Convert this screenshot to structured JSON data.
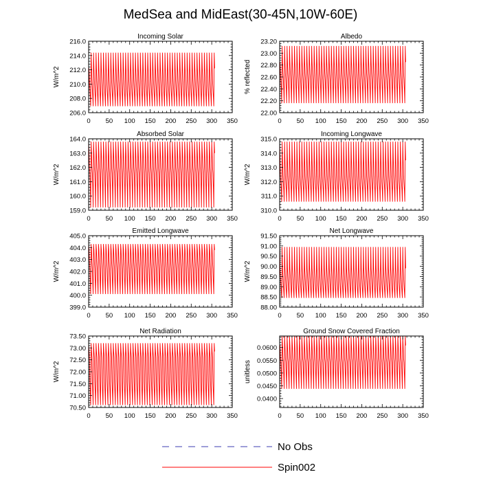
{
  "figure": {
    "title": "MedSea and MidEast(30-45N,10W-60E)"
  },
  "legend": {
    "items": [
      {
        "name": "No Obs",
        "color": "#3b3bb0",
        "style": "dashed"
      },
      {
        "name": "Spin002",
        "color": "#ff0000",
        "style": "solid"
      }
    ]
  },
  "chart_data": [
    {
      "type": "line",
      "title": "Incoming Solar",
      "ylabel": "W/m^2",
      "xlim": [
        0,
        350
      ],
      "xticks": [
        0,
        50,
        100,
        150,
        200,
        250,
        300,
        350
      ],
      "ylim": [
        206,
        216
      ],
      "yticks": [
        "206.0",
        "208.0",
        "210.0",
        "212.0",
        "214.0",
        "216.0"
      ],
      "series": [
        {
          "name": "Spin002",
          "color": "#ff0000",
          "x_range": [
            0,
            307
          ],
          "period": 6,
          "levels": [
            214.4,
            212.2,
            210.5,
            209.3,
            208.2,
            206.9
          ],
          "start_offset": -1.2
        }
      ]
    },
    {
      "type": "line",
      "title": "Albedo",
      "ylabel": "% reflected",
      "xlim": [
        0,
        350
      ],
      "xticks": [
        0,
        50,
        100,
        150,
        200,
        250,
        300,
        350
      ],
      "ylim": [
        22.0,
        23.2
      ],
      "yticks": [
        "22.00",
        "22.20",
        "22.40",
        "22.60",
        "22.80",
        "23.00",
        "23.20"
      ],
      "series": [
        {
          "name": "Spin002",
          "color": "#ff0000",
          "x_range": [
            0,
            307
          ],
          "period": 6,
          "levels": [
            23.12,
            22.85,
            22.66,
            22.55,
            22.38,
            22.16
          ],
          "start_offset": -0.24
        }
      ]
    },
    {
      "type": "line",
      "title": "Absorbed Solar",
      "ylabel": "W/m^2",
      "xlim": [
        0,
        350
      ],
      "xticks": [
        0,
        50,
        100,
        150,
        200,
        250,
        300,
        350
      ],
      "ylim": [
        159,
        164
      ],
      "yticks": [
        "159.0",
        "160.0",
        "161.0",
        "162.0",
        "163.0",
        "164.0"
      ],
      "series": [
        {
          "name": "Spin002",
          "color": "#ff0000",
          "x_range": [
            0,
            307
          ],
          "period": 6,
          "levels": [
            163.8,
            163.0,
            162.0,
            161.6,
            160.6,
            159.2
          ],
          "start_offset": 0
        }
      ]
    },
    {
      "type": "line",
      "title": "Incoming Longwave",
      "ylabel": "W/m^2",
      "xlim": [
        0,
        350
      ],
      "xticks": [
        0,
        50,
        100,
        150,
        200,
        250,
        300,
        350
      ],
      "ylim": [
        310,
        315
      ],
      "yticks": [
        "310.0",
        "311.0",
        "312.0",
        "313.0",
        "314.0",
        "315.0"
      ],
      "series": [
        {
          "name": "Spin002",
          "color": "#ff0000",
          "x_range": [
            0,
            307
          ],
          "period": 6,
          "levels": [
            314.8,
            313.5,
            312.4,
            311.9,
            311.4,
            310.6
          ],
          "start_offset": 0
        }
      ]
    },
    {
      "type": "line",
      "title": "Emitted Longwave",
      "ylabel": "W/m^2",
      "xlim": [
        0,
        350
      ],
      "xticks": [
        0,
        50,
        100,
        150,
        200,
        250,
        300,
        350
      ],
      "ylim": [
        399,
        405
      ],
      "yticks": [
        "399.0",
        "400.0",
        "401.0",
        "402.0",
        "403.0",
        "404.0",
        "405.0"
      ],
      "series": [
        {
          "name": "Spin002",
          "color": "#ff0000",
          "x_range": [
            0,
            307
          ],
          "period": 6,
          "levels": [
            404.3,
            403.8,
            402.8,
            402.2,
            401.0,
            400.1
          ],
          "start_offset": 0
        }
      ]
    },
    {
      "type": "line",
      "title": "Net Longwave",
      "ylabel": "W/m^2",
      "xlim": [
        0,
        350
      ],
      "xticks": [
        0,
        50,
        100,
        150,
        200,
        250,
        300,
        350
      ],
      "ylim": [
        88.0,
        91.5
      ],
      "yticks": [
        "88.00",
        "88.50",
        "89.00",
        "89.50",
        "90.00",
        "90.50",
        "91.00",
        "91.50"
      ],
      "series": [
        {
          "name": "Spin002",
          "color": "#ff0000",
          "x_range": [
            0,
            307
          ],
          "period": 6,
          "levels": [
            90.95,
            89.9,
            89.5,
            89.1,
            88.75,
            88.45
          ],
          "start_offset": 0
        }
      ]
    },
    {
      "type": "line",
      "title": "Net Radiation",
      "ylabel": "W/m^2",
      "xlim": [
        0,
        350
      ],
      "xticks": [
        0,
        50,
        100,
        150,
        200,
        250,
        300,
        350
      ],
      "ylim": [
        70.5,
        73.5
      ],
      "yticks": [
        "70.50",
        "71.00",
        "71.50",
        "72.00",
        "72.50",
        "73.00",
        "73.50"
      ],
      "series": [
        {
          "name": "Spin002",
          "color": "#ff0000",
          "x_range": [
            0,
            307
          ],
          "period": 6,
          "levels": [
            73.2,
            72.85,
            72.6,
            71.6,
            71.1,
            70.6
          ],
          "start_offset": 0
        }
      ]
    },
    {
      "type": "line",
      "title": "Ground Snow Covered Fraction",
      "ylabel": "unitless",
      "xlim": [
        0,
        350
      ],
      "xticks": [
        0,
        50,
        100,
        150,
        200,
        250,
        300,
        350
      ],
      "ylim": [
        0.0365,
        0.0645
      ],
      "yticks": [
        "0.0400",
        "0.0450",
        "0.0500",
        "0.0550",
        "0.0600"
      ],
      "series": [
        {
          "name": "Spin002",
          "color": "#ff0000",
          "x_range": [
            0,
            307
          ],
          "period": 6,
          "levels": [
            0.0645,
            0.0608,
            0.0558,
            0.0542,
            0.049,
            0.0438
          ],
          "start_offset": -0.0075
        }
      ]
    }
  ]
}
